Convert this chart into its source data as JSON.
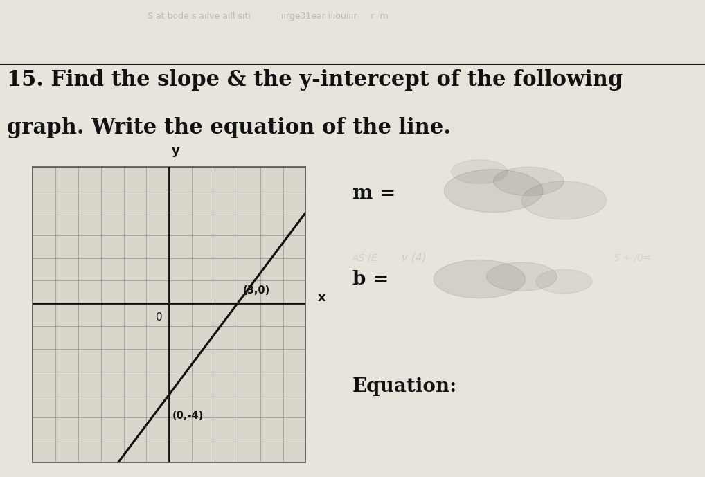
{
  "title_bold": "15.",
  "title_line1": " Find the slope & the y-intercept of the following",
  "title_line2": "graph. Write the equation of the line.",
  "bg_color": "#e8e4dc",
  "grid_bg": "#dbd6cc",
  "grid_color": "#777777",
  "line_color": "#111111",
  "axis_color": "#111111",
  "point1": [
    0,
    -4
  ],
  "point2": [
    3,
    0
  ],
  "point1_label": "(0,-4)",
  "point2_label": "(3,0)",
  "xlabel": "x",
  "ylabel": "y",
  "xlim": [
    -6,
    6
  ],
  "ylim": [
    -7,
    6
  ],
  "right_m_label": "m =",
  "right_b_label": "b =",
  "right_eq_label": "Equation:",
  "title_fontsize": 22,
  "label_fontsize": 18
}
